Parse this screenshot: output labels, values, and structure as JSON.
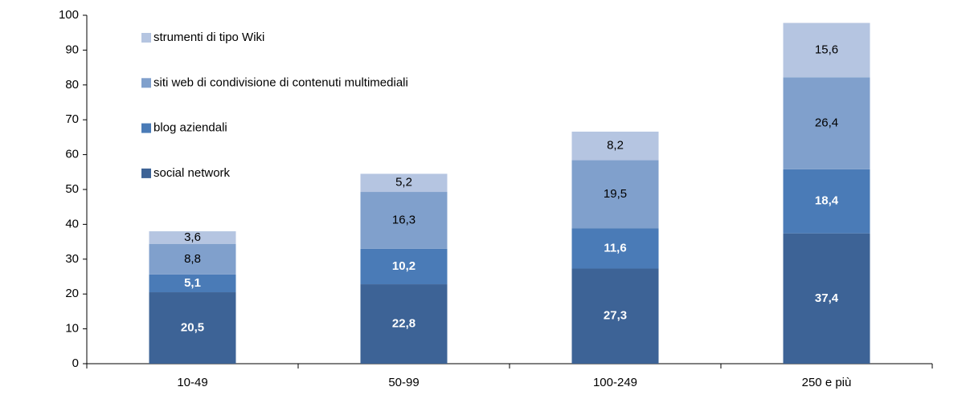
{
  "chart_data": {
    "type": "stacked_bar",
    "categories": [
      "10-49",
      "50-99",
      "100-249",
      "250 e più"
    ],
    "series": [
      {
        "name": "social network",
        "color": "#3d6396",
        "values": [
          20.5,
          22.8,
          27.3,
          37.4
        ],
        "value_labels": [
          "20,5",
          "22,8",
          "27,3",
          "37,4"
        ]
      },
      {
        "name": "blog aziendali",
        "color": "#4a7bb7",
        "values": [
          5.1,
          10.2,
          11.6,
          18.4
        ],
        "value_labels": [
          "5,1",
          "10,2",
          "11,6",
          "18,4"
        ]
      },
      {
        "name": "siti web di condivisione di contenuti multimediali",
        "color": "#80a0cc",
        "values": [
          8.8,
          16.3,
          19.5,
          26.4
        ],
        "value_labels": [
          "8,8",
          "16,3",
          "19,5",
          "26,4"
        ]
      },
      {
        "name": "strumenti di tipo Wiki",
        "color": "#b5c5e1",
        "values": [
          3.6,
          5.2,
          8.2,
          15.6
        ],
        "value_labels": [
          "3,6",
          "5,2",
          "8,2",
          "15,6"
        ]
      }
    ],
    "ylim": [
      0,
      100
    ],
    "yticks": [
      0,
      10,
      20,
      30,
      40,
      50,
      60,
      70,
      80,
      90,
      100
    ],
    "legend": "upper left"
  }
}
